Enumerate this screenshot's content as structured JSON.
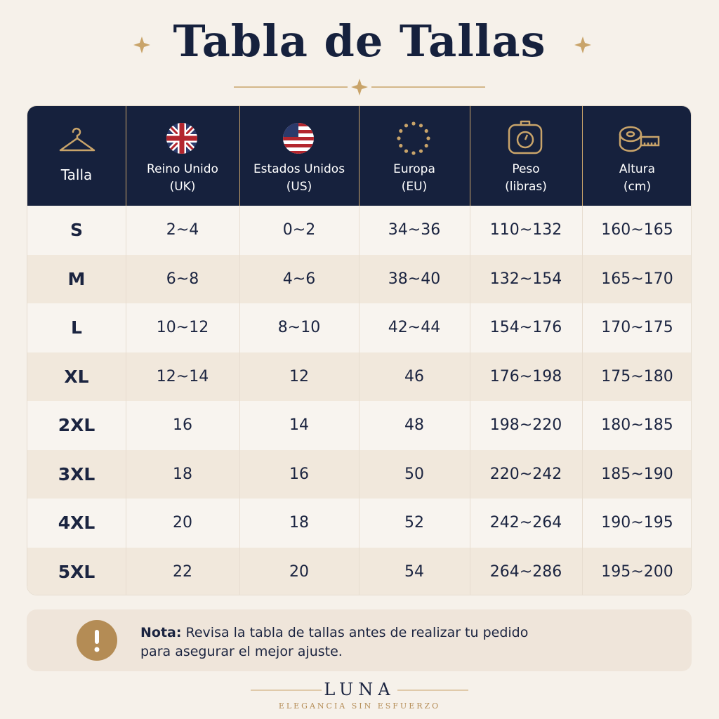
{
  "header": {
    "title": "Tabla de Tallas"
  },
  "table": {
    "headers": [
      {
        "lines": [
          "Talla"
        ]
      },
      {
        "lines": [
          "Reino Unido",
          "(UK)"
        ]
      },
      {
        "lines": [
          "Estados Unidos",
          "(US)"
        ]
      },
      {
        "lines": [
          "Europa",
          "(EU)"
        ]
      },
      {
        "lines": [
          "Peso",
          "(libras)"
        ]
      },
      {
        "lines": [
          "Altura",
          "(cm)"
        ]
      }
    ],
    "rows": [
      [
        "S",
        "2~4",
        "0~2",
        "34~36",
        "110~132",
        "160~165"
      ],
      [
        "M",
        "6~8",
        "4~6",
        "38~40",
        "132~154",
        "165~170"
      ],
      [
        "L",
        "10~12",
        "8~10",
        "42~44",
        "154~176",
        "170~175"
      ],
      [
        "XL",
        "12~14",
        "12",
        "46",
        "176~198",
        "175~180"
      ],
      [
        "2XL",
        "16",
        "14",
        "48",
        "198~220",
        "180~185"
      ],
      [
        "3XL",
        "18",
        "16",
        "50",
        "220~242",
        "185~190"
      ],
      [
        "4XL",
        "20",
        "18",
        "52",
        "242~264",
        "190~195"
      ],
      [
        "5XL",
        "22",
        "20",
        "54",
        "264~286",
        "195~200"
      ]
    ]
  },
  "note": {
    "label": "Nota:",
    "lines": [
      "Revisa la tabla de tallas antes de realizar tu pedido",
      "para asegurar el mejor ajuste."
    ]
  },
  "footer": {
    "brand": "LUNA",
    "tagline": "ELEGANCIA SIN ESFUERZO"
  }
}
